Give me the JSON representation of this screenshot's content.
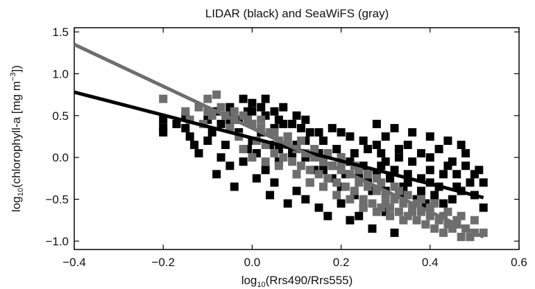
{
  "chart_data": {
    "type": "scatter",
    "title": "LIDAR (black) and SeaWiFS (gray)",
    "xlabel": {
      "prefix": "log",
      "sub": "10",
      "rest": "(Rrs490/Rrs555)"
    },
    "ylabel": {
      "prefix": "log",
      "sub": "10",
      "mid": "(chlorophyll-a [mg m",
      "sup": "−3",
      "end": "])"
    },
    "xlim": [
      -0.4,
      0.6
    ],
    "ylim": [
      -1.1,
      1.55
    ],
    "xticks": [
      -0.4,
      -0.2,
      0.0,
      0.2,
      0.4,
      0.6
    ],
    "xtick_labels": [
      "−0.4",
      "−0.2",
      "0.0",
      "0.2",
      "0.4",
      "0.6"
    ],
    "yticks": [
      -1.0,
      -0.5,
      0.0,
      0.5,
      1.0,
      1.5
    ],
    "ytick_labels": [
      "−1.0",
      "−0.5",
      "0.0",
      "0.5",
      "1.0",
      "1.5"
    ],
    "colors": {
      "LIDAR": "#000000",
      "SeaWiFS": "#6e6e6e"
    },
    "series": [
      {
        "color": "#000000",
        "marker": "square",
        "points": [
          [
            -0.2,
            0.45
          ],
          [
            -0.2,
            0.35
          ],
          [
            -0.2,
            0.3
          ],
          [
            -0.15,
            0.5
          ],
          [
            -0.15,
            0.35
          ],
          [
            -0.13,
            0.15
          ],
          [
            -0.1,
            0.45
          ],
          [
            -0.08,
            0.55
          ],
          [
            -0.05,
            0.6
          ],
          [
            -0.05,
            0.45
          ],
          [
            -0.02,
            0.7
          ],
          [
            -0.01,
            0.55
          ],
          [
            0.0,
            0.65
          ],
          [
            0.02,
            0.6
          ],
          [
            0.03,
            0.7
          ],
          [
            0.05,
            0.55
          ],
          [
            0.07,
            0.6
          ],
          [
            0.1,
            0.5
          ],
          [
            0.12,
            0.45
          ],
          [
            0.15,
            0.3
          ],
          [
            0.18,
            0.35
          ],
          [
            0.2,
            0.3
          ],
          [
            0.22,
            0.25
          ],
          [
            0.25,
            0.2
          ],
          [
            0.28,
            0.15
          ],
          [
            0.3,
            0.25
          ],
          [
            0.33,
            0.1
          ],
          [
            0.35,
            0.15
          ],
          [
            0.38,
            0.05
          ],
          [
            0.4,
            0.0
          ],
          [
            0.42,
            0.1
          ],
          [
            0.45,
            -0.05
          ],
          [
            0.48,
            -0.1
          ],
          [
            0.5,
            -0.2
          ],
          [
            0.52,
            -0.3
          ],
          [
            -0.1,
            0.2
          ],
          [
            -0.07,
            0.0
          ],
          [
            -0.05,
            -0.1
          ],
          [
            -0.03,
            0.3
          ],
          [
            0.0,
            0.4
          ],
          [
            0.02,
            0.3
          ],
          [
            0.05,
            0.35
          ],
          [
            0.08,
            0.25
          ],
          [
            0.1,
            0.15
          ],
          [
            0.12,
            0.0
          ],
          [
            0.15,
            0.05
          ],
          [
            0.18,
            -0.1
          ],
          [
            0.2,
            0.0
          ],
          [
            0.22,
            -0.05
          ],
          [
            0.25,
            -0.1
          ],
          [
            0.28,
            -0.2
          ],
          [
            0.3,
            -0.05
          ],
          [
            0.32,
            -0.15
          ],
          [
            0.35,
            -0.2
          ],
          [
            0.38,
            -0.25
          ],
          [
            0.4,
            -0.3
          ],
          [
            0.43,
            -0.2
          ],
          [
            0.46,
            -0.35
          ],
          [
            0.5,
            -0.45
          ],
          [
            -0.05,
            0.5
          ],
          [
            0.0,
            0.2
          ],
          [
            0.03,
            -0.15
          ],
          [
            0.06,
            0.1
          ],
          [
            0.1,
            -0.2
          ],
          [
            0.13,
            -0.3
          ],
          [
            0.16,
            -0.15
          ],
          [
            0.2,
            -0.35
          ],
          [
            0.23,
            -0.45
          ],
          [
            0.26,
            -0.3
          ],
          [
            0.3,
            -0.4
          ],
          [
            0.34,
            -0.35
          ],
          [
            0.37,
            -0.5
          ],
          [
            0.41,
            -0.45
          ],
          [
            0.45,
            -0.5
          ],
          [
            0.52,
            -0.6
          ],
          [
            -0.12,
            0.05
          ],
          [
            -0.08,
            -0.2
          ],
          [
            -0.04,
            -0.35
          ],
          [
            0.01,
            -0.25
          ],
          [
            0.04,
            -0.45
          ],
          [
            0.08,
            -0.55
          ],
          [
            0.12,
            -0.5
          ],
          [
            0.17,
            -0.7
          ],
          [
            0.22,
            -0.75
          ],
          [
            0.27,
            -0.85
          ],
          [
            0.32,
            -0.9
          ],
          [
            0.15,
            -0.6
          ],
          [
            0.25,
            -0.6
          ],
          [
            0.1,
            -0.4
          ],
          [
            0.05,
            -0.3
          ],
          [
            0.28,
            0.4
          ],
          [
            0.32,
            0.35
          ],
          [
            0.36,
            0.3
          ],
          [
            0.4,
            0.25
          ],
          [
            0.44,
            0.2
          ],
          [
            0.48,
            0.05
          ],
          [
            0.47,
            0.15
          ],
          [
            0.44,
            -0.1
          ],
          [
            0.4,
            -0.15
          ],
          [
            0.36,
            -0.05
          ],
          [
            0.33,
            0.0
          ],
          [
            0.29,
            0.05
          ],
          [
            0.26,
            0.1
          ],
          [
            0.24,
            -0.2
          ],
          [
            0.19,
            0.1
          ],
          [
            0.16,
            0.2
          ],
          [
            0.13,
            0.3
          ],
          [
            0.11,
            0.35
          ],
          [
            0.09,
            0.05
          ],
          [
            0.06,
            -0.05
          ],
          [
            0.04,
            0.15
          ],
          [
            0.01,
            0.05
          ],
          [
            -0.02,
            -0.05
          ],
          [
            -0.06,
            0.15
          ],
          [
            -0.09,
            0.3
          ],
          [
            -0.14,
            0.25
          ],
          [
            -0.17,
            0.4
          ],
          [
            0.42,
            -0.35
          ],
          [
            0.46,
            -0.2
          ],
          [
            0.49,
            -0.3
          ],
          [
            0.51,
            -0.15
          ],
          [
            0.38,
            -0.4
          ],
          [
            0.35,
            -0.3
          ],
          [
            0.31,
            -0.25
          ],
          [
            0.27,
            -0.4
          ],
          [
            0.21,
            -0.2
          ],
          [
            0.18,
            -0.25
          ],
          [
            0.14,
            -0.15
          ],
          [
            0.07,
            0.4
          ],
          [
            0.03,
            0.5
          ],
          [
            -0.01,
            0.1
          ],
          [
            -0.03,
            0.45
          ],
          [
            -0.07,
            0.4
          ],
          [
            0.0,
            0.55
          ],
          [
            0.06,
            0.45
          ],
          [
            0.09,
            0.4
          ],
          [
            0.12,
            0.2
          ],
          [
            0.23,
            0.05
          ],
          [
            0.29,
            -0.1
          ],
          [
            0.34,
            -0.45
          ],
          [
            0.39,
            -0.55
          ],
          [
            0.43,
            -0.55
          ],
          [
            0.47,
            -0.4
          ],
          [
            0.2,
            -0.55
          ],
          [
            0.24,
            -0.7
          ],
          [
            0.3,
            -0.65
          ]
        ]
      },
      {
        "color": "#6e6e6e",
        "marker": "square",
        "points": [
          [
            -0.2,
            0.7
          ],
          [
            -0.15,
            0.55
          ],
          [
            -0.12,
            0.6
          ],
          [
            -0.1,
            0.7
          ],
          [
            -0.08,
            0.75
          ],
          [
            -0.1,
            0.55
          ],
          [
            -0.06,
            0.5
          ],
          [
            -0.04,
            0.45
          ],
          [
            -0.02,
            0.5
          ],
          [
            0.0,
            0.4
          ],
          [
            0.02,
            0.35
          ],
          [
            0.04,
            0.3
          ],
          [
            0.06,
            0.2
          ],
          [
            0.08,
            0.15
          ],
          [
            0.1,
            0.1
          ],
          [
            0.12,
            0.05
          ],
          [
            0.14,
            0.0
          ],
          [
            0.16,
            -0.05
          ],
          [
            0.18,
            -0.1
          ],
          [
            0.2,
            -0.15
          ],
          [
            0.22,
            -0.2
          ],
          [
            0.24,
            -0.3
          ],
          [
            0.26,
            -0.35
          ],
          [
            0.28,
            -0.4
          ],
          [
            0.3,
            -0.45
          ],
          [
            0.32,
            -0.5
          ],
          [
            0.34,
            -0.55
          ],
          [
            0.36,
            -0.6
          ],
          [
            0.38,
            -0.65
          ],
          [
            0.4,
            -0.7
          ],
          [
            0.42,
            -0.75
          ],
          [
            0.44,
            -0.8
          ],
          [
            0.46,
            -0.8
          ],
          [
            0.48,
            -0.85
          ],
          [
            0.5,
            -0.9
          ],
          [
            0.52,
            -0.9
          ],
          [
            -0.14,
            0.45
          ],
          [
            -0.11,
            0.4
          ],
          [
            -0.09,
            0.5
          ],
          [
            -0.05,
            0.35
          ],
          [
            -0.03,
            0.25
          ],
          [
            0.01,
            0.2
          ],
          [
            0.03,
            0.15
          ],
          [
            0.05,
            0.05
          ],
          [
            0.07,
            0.0
          ],
          [
            0.09,
            -0.05
          ],
          [
            0.11,
            -0.1
          ],
          [
            0.13,
            -0.15
          ],
          [
            0.15,
            -0.2
          ],
          [
            0.17,
            -0.25
          ],
          [
            0.19,
            -0.3
          ],
          [
            0.21,
            -0.35
          ],
          [
            0.23,
            -0.4
          ],
          [
            0.25,
            -0.5
          ],
          [
            0.27,
            -0.55
          ],
          [
            0.29,
            -0.6
          ],
          [
            0.31,
            -0.6
          ],
          [
            0.33,
            -0.65
          ],
          [
            0.35,
            -0.7
          ],
          [
            0.37,
            -0.75
          ],
          [
            0.39,
            -0.8
          ],
          [
            0.41,
            -0.85
          ],
          [
            0.43,
            -0.9
          ],
          [
            0.45,
            -0.85
          ],
          [
            0.47,
            -0.95
          ],
          [
            0.49,
            -0.95
          ],
          [
            -0.07,
            0.6
          ],
          [
            -0.04,
            0.55
          ],
          [
            -0.01,
            0.45
          ],
          [
            0.02,
            0.45
          ],
          [
            0.05,
            0.3
          ],
          [
            0.08,
            0.25
          ],
          [
            0.11,
            0.2
          ],
          [
            0.14,
            0.1
          ],
          [
            0.17,
            0.05
          ],
          [
            0.2,
            0.0
          ],
          [
            0.23,
            -0.1
          ],
          [
            0.26,
            -0.2
          ],
          [
            0.29,
            -0.3
          ],
          [
            0.32,
            -0.35
          ],
          [
            0.35,
            -0.45
          ],
          [
            0.38,
            -0.5
          ],
          [
            0.41,
            -0.55
          ],
          [
            0.44,
            -0.65
          ],
          [
            0.47,
            -0.7
          ],
          [
            0.5,
            -0.75
          ],
          [
            -0.02,
            0.1
          ],
          [
            0.0,
            0.0
          ],
          [
            0.03,
            -0.05
          ],
          [
            0.06,
            -0.1
          ],
          [
            0.1,
            -0.2
          ],
          [
            0.13,
            -0.3
          ],
          [
            0.16,
            -0.35
          ],
          [
            0.19,
            -0.45
          ],
          [
            0.22,
            -0.5
          ],
          [
            0.25,
            -0.6
          ],
          [
            0.28,
            -0.65
          ],
          [
            0.31,
            -0.7
          ],
          [
            0.34,
            -0.75
          ],
          [
            0.2,
            -0.1
          ],
          [
            0.24,
            -0.15
          ],
          [
            0.28,
            -0.25
          ],
          [
            0.33,
            -0.4
          ],
          [
            0.37,
            -0.55
          ],
          [
            0.4,
            -0.6
          ],
          [
            0.43,
            -0.7
          ],
          [
            0.46,
            -0.75
          ],
          [
            0.36,
            -0.65
          ],
          [
            0.3,
            -0.55
          ]
        ]
      }
    ],
    "regressions": [
      {
        "color": "#000000",
        "x": [
          -0.4,
          0.52
        ],
        "y": [
          0.78,
          -0.48
        ]
      },
      {
        "color": "#6e6e6e",
        "x": [
          -0.4,
          0.52
        ],
        "y": [
          1.35,
          -0.95
        ]
      }
    ],
    "grid": false,
    "legend": "none"
  }
}
